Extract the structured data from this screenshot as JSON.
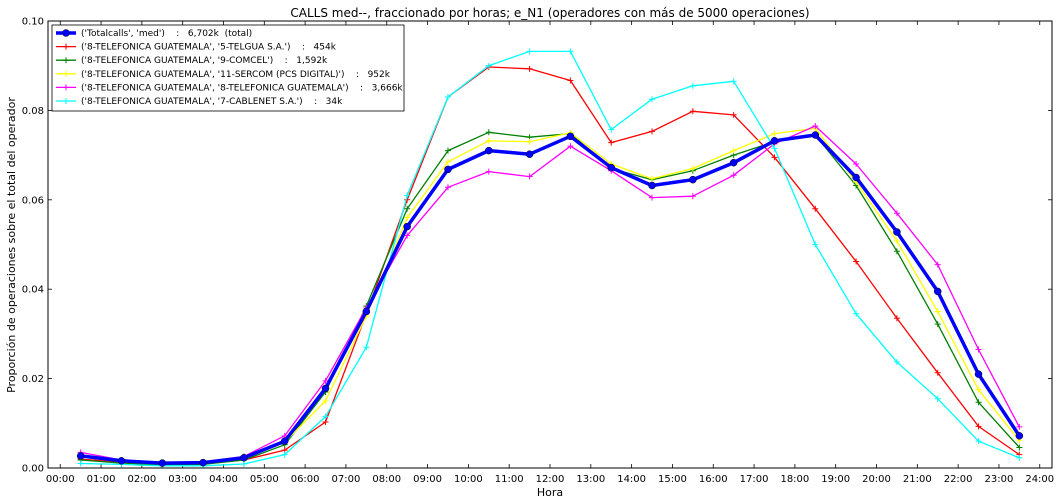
{
  "chart_data": {
    "type": "line",
    "title": "CALLS med--, fraccionado por horas; e_N1 (operadores con más de 5000 operaciones)",
    "xlabel": "Hora",
    "ylabel": "Proporción de operaciones sobre el total del operador",
    "xlim": [
      -0.3,
      24.3
    ],
    "ylim": [
      0,
      0.1
    ],
    "xticks": [
      "00:00",
      "01:00",
      "02:00",
      "03:00",
      "04:00",
      "05:00",
      "06:00",
      "07:00",
      "08:00",
      "09:00",
      "10:00",
      "11:00",
      "12:00",
      "13:00",
      "14:00",
      "15:00",
      "16:00",
      "17:00",
      "18:00",
      "19:00",
      "20:00",
      "21:00",
      "22:00",
      "23:00",
      "24:00"
    ],
    "yticks": [
      "0.00",
      "0.02",
      "0.04",
      "0.06",
      "0.08",
      "0.10"
    ],
    "grid": false,
    "legend_position": "top-left",
    "x": [
      0.5,
      1.5,
      2.5,
      3.5,
      4.5,
      5.5,
      6.5,
      7.5,
      8.5,
      9.5,
      10.5,
      11.5,
      12.5,
      13.5,
      14.5,
      15.5,
      16.5,
      17.5,
      18.5,
      19.5,
      20.5,
      21.5,
      22.5,
      23.5
    ],
    "series": [
      {
        "name": "('Totalcalls', 'med')    :   6,702k  (total)",
        "color": "#0000ff",
        "width": 3.5,
        "marker": "circle",
        "values": [
          0.0027,
          0.0016,
          0.0011,
          0.0012,
          0.0023,
          0.006,
          0.0178,
          0.035,
          0.054,
          0.0668,
          0.071,
          0.0702,
          0.0742,
          0.0672,
          0.0632,
          0.0645,
          0.0683,
          0.0732,
          0.0745,
          0.065,
          0.0528,
          0.0395,
          0.021,
          0.0072
        ]
      },
      {
        "name": "('8-TELEFONICA GUATEMALA', '5-TELGUA S.A.')    :   454k",
        "color": "#ff0000",
        "width": 1.3,
        "marker": "plus",
        "values": [
          0.002,
          0.0013,
          0.001,
          0.001,
          0.0018,
          0.004,
          0.0103,
          0.0345,
          0.06,
          0.083,
          0.0897,
          0.0893,
          0.0867,
          0.0728,
          0.0753,
          0.0798,
          0.079,
          0.0695,
          0.058,
          0.0462,
          0.0335,
          0.0213,
          0.0093,
          0.003
        ]
      },
      {
        "name": "('8-TELEFONICA GUATEMALA', '9-COMCEL')    :   1,592k",
        "color": "#008000",
        "width": 1.3,
        "marker": "plus",
        "values": [
          0.0018,
          0.0011,
          0.0007,
          0.0008,
          0.0018,
          0.0052,
          0.017,
          0.0362,
          0.058,
          0.071,
          0.0751,
          0.074,
          0.0748,
          0.067,
          0.0645,
          0.0665,
          0.07,
          0.073,
          0.0745,
          0.0632,
          0.0485,
          0.0322,
          0.0147,
          0.0046
        ]
      },
      {
        "name": "('8-TELEFONICA GUATEMALA', '11-SERCOM (PCS DIGITAL)')    :   952k",
        "color": "#ffff00",
        "width": 1.3,
        "marker": "plus",
        "values": [
          0.0025,
          0.0014,
          0.001,
          0.0011,
          0.0021,
          0.0058,
          0.015,
          0.034,
          0.056,
          0.0685,
          0.0732,
          0.073,
          0.075,
          0.068,
          0.0647,
          0.067,
          0.071,
          0.0748,
          0.076,
          0.064,
          0.0508,
          0.035,
          0.0175,
          0.0062
        ]
      },
      {
        "name": "('8-TELEFONICA GUATEMALA', '8-TELEFONICA GUATEMALA')    :   3,666k",
        "color": "#ff00ff",
        "width": 1.3,
        "marker": "plus",
        "values": [
          0.0035,
          0.0018,
          0.0012,
          0.0013,
          0.0026,
          0.0072,
          0.0195,
          0.0358,
          0.052,
          0.0628,
          0.0663,
          0.0652,
          0.072,
          0.0665,
          0.0605,
          0.0608,
          0.0655,
          0.0725,
          0.0765,
          0.068,
          0.057,
          0.0455,
          0.0265,
          0.0092
        ]
      },
      {
        "name": "('8-TELEFONICA GUATEMALA', '7-CABLENET S.A.')    :   34k",
        "color": "#00ffff",
        "width": 1.3,
        "marker": "plus",
        "values": [
          0.001,
          0.0008,
          0.0005,
          0.0005,
          0.0009,
          0.003,
          0.0115,
          0.027,
          0.061,
          0.083,
          0.09,
          0.0932,
          0.0932,
          0.0757,
          0.0825,
          0.0855,
          0.0865,
          0.0715,
          0.05,
          0.0345,
          0.0237,
          0.0155,
          0.006,
          0.0023
        ]
      }
    ]
  }
}
